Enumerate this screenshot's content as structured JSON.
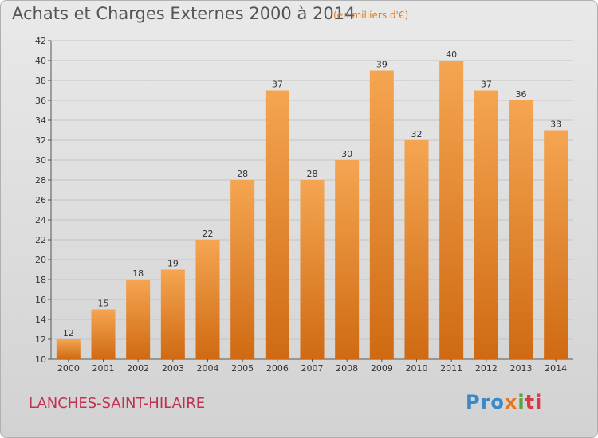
{
  "header": {
    "title": "Achats et Charges Externes 2000 à 2014",
    "subtitle": "(en milliers d'€)"
  },
  "footer": {
    "place": "LANCHES-SAINT-HILAIRE",
    "logo": [
      "Pro",
      "x",
      "i",
      "ti"
    ]
  },
  "chart_data": {
    "type": "bar",
    "title": "Achats et Charges Externes 2000 à 2014",
    "subtitle": "(en milliers d'€)",
    "categories": [
      "2000",
      "2001",
      "2002",
      "2003",
      "2004",
      "2005",
      "2006",
      "2007",
      "2008",
      "2009",
      "2010",
      "2011",
      "2012",
      "2013",
      "2014"
    ],
    "values": [
      12,
      15,
      18,
      19,
      22,
      28,
      37,
      28,
      30,
      39,
      32,
      40,
      37,
      36,
      33
    ],
    "ylim": [
      10,
      42
    ],
    "yticks": [
      10,
      12,
      14,
      16,
      18,
      20,
      22,
      24,
      26,
      28,
      30,
      32,
      34,
      36,
      38,
      40,
      42
    ],
    "grid": true,
    "colors": {
      "bar_top": "#f5a551",
      "bar_bottom": "#cf6a12"
    }
  }
}
